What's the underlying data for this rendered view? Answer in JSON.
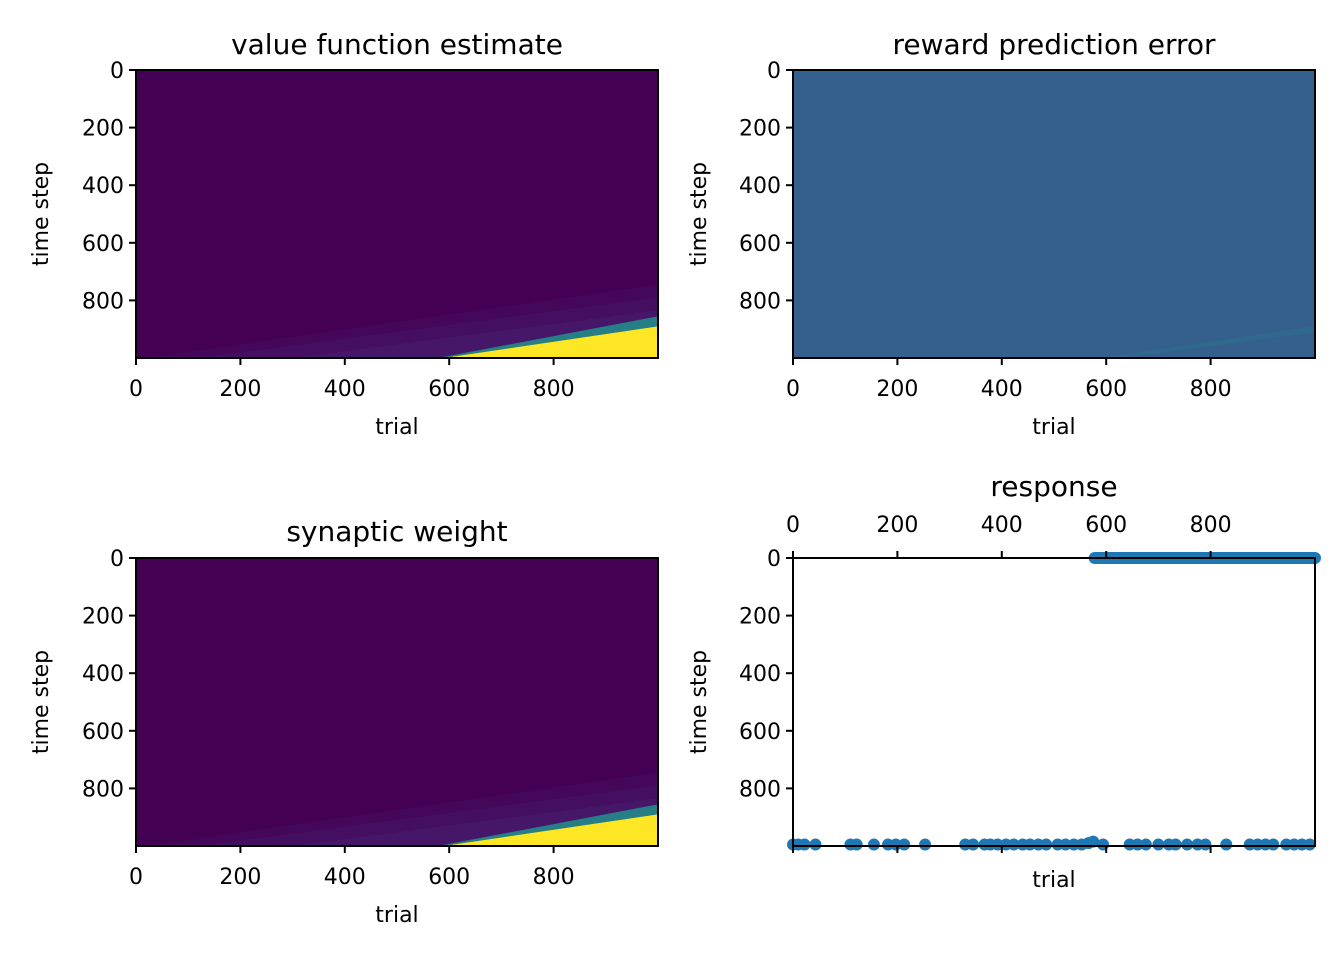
{
  "colors": {
    "viridis_low": "#440154",
    "viridis_mid_low": "#482878",
    "viridis_mid": "#21908d",
    "viridis_high": "#fde725",
    "rpe_background": "#355f8d",
    "rpe_band": "#2f6b8e",
    "marker": "#1f77b4"
  },
  "chart_data": [
    {
      "type": "heatmap",
      "title": "value function estimate",
      "xlabel": "trial",
      "ylabel": "time step",
      "xlim": [
        0,
        1000
      ],
      "ylim": [
        1000,
        0
      ],
      "xticks": [
        "0",
        "200",
        "400",
        "600",
        "800"
      ],
      "yticks": [
        "0",
        "200",
        "400",
        "600",
        "800"
      ],
      "colormap": "viridis",
      "values_description": {
        "background": "low",
        "high_region": {
          "trial_start": 590,
          "time_at_trial_1000": 890,
          "color": "high"
        },
        "faint_streaks": [
          {
            "trial_start": 20,
            "time_at_trial_1000": 745
          },
          {
            "trial_start": 120,
            "time_at_trial_1000": 790
          },
          {
            "trial_start": 300,
            "time_at_trial_1000": 835
          }
        ]
      }
    },
    {
      "type": "heatmap",
      "title": "reward prediction error",
      "xlabel": "trial",
      "ylabel": "time step",
      "xlim": [
        0,
        1000
      ],
      "ylim": [
        1000,
        0
      ],
      "xticks": [
        "0",
        "200",
        "400",
        "600",
        "800"
      ],
      "yticks": [
        "0",
        "200",
        "400",
        "600",
        "800"
      ],
      "colormap": "viridis",
      "values_description": {
        "background": "near zero",
        "faint_band": {
          "trial_start": 590,
          "time_at_trial_1000": 890
        }
      }
    },
    {
      "type": "heatmap",
      "title": "synaptic weight",
      "xlabel": "trial",
      "ylabel": "time step",
      "xlim": [
        0,
        1000
      ],
      "ylim": [
        1000,
        0
      ],
      "xticks": [
        "0",
        "200",
        "400",
        "600",
        "800"
      ],
      "yticks": [
        "0",
        "200",
        "400",
        "600",
        "800"
      ],
      "colormap": "viridis",
      "values_description": {
        "background": "low",
        "high_region": {
          "trial_start": 590,
          "time_at_trial_1000": 890,
          "color": "high"
        },
        "faint_streaks": [
          {
            "trial_start": 20,
            "time_at_trial_1000": 745
          },
          {
            "trial_start": 120,
            "time_at_trial_1000": 790
          },
          {
            "trial_start": 300,
            "time_at_trial_1000": 835
          }
        ]
      }
    },
    {
      "type": "scatter",
      "title": "response",
      "xlabel": "trial",
      "ylabel": "time step",
      "xlim": [
        0,
        1000
      ],
      "ylim": [
        1000,
        0
      ],
      "xticks_top": [
        "0",
        "200",
        "400",
        "600",
        "800"
      ],
      "yticks": [
        "0",
        "200",
        "400",
        "600",
        "800"
      ],
      "series": [
        {
          "points": [
            {
              "x": 0,
              "y": 995
            },
            {
              "x": 10,
              "y": 995
            },
            {
              "x": 22,
              "y": 995
            },
            {
              "x": 43,
              "y": 995
            },
            {
              "x": 110,
              "y": 995
            },
            {
              "x": 122,
              "y": 995
            },
            {
              "x": 155,
              "y": 995
            },
            {
              "x": 182,
              "y": 995
            },
            {
              "x": 197,
              "y": 995
            },
            {
              "x": 213,
              "y": 995
            },
            {
              "x": 253,
              "y": 995
            },
            {
              "x": 330,
              "y": 995
            },
            {
              "x": 345,
              "y": 995
            },
            {
              "x": 367,
              "y": 995
            },
            {
              "x": 378,
              "y": 995
            },
            {
              "x": 392,
              "y": 995
            },
            {
              "x": 408,
              "y": 995
            },
            {
              "x": 423,
              "y": 995
            },
            {
              "x": 440,
              "y": 995
            },
            {
              "x": 454,
              "y": 995
            },
            {
              "x": 470,
              "y": 995
            },
            {
              "x": 485,
              "y": 995
            },
            {
              "x": 507,
              "y": 995
            },
            {
              "x": 522,
              "y": 995
            },
            {
              "x": 538,
              "y": 995
            },
            {
              "x": 553,
              "y": 995
            },
            {
              "x": 566,
              "y": 990
            },
            {
              "x": 575,
              "y": 985
            },
            {
              "x": 594,
              "y": 995
            },
            {
              "x": 645,
              "y": 995
            },
            {
              "x": 660,
              "y": 995
            },
            {
              "x": 676,
              "y": 995
            },
            {
              "x": 700,
              "y": 995
            },
            {
              "x": 720,
              "y": 995
            },
            {
              "x": 733,
              "y": 995
            },
            {
              "x": 755,
              "y": 995
            },
            {
              "x": 775,
              "y": 995
            },
            {
              "x": 790,
              "y": 995
            },
            {
              "x": 830,
              "y": 995
            },
            {
              "x": 875,
              "y": 995
            },
            {
              "x": 890,
              "y": 995
            },
            {
              "x": 905,
              "y": 995
            },
            {
              "x": 920,
              "y": 995
            },
            {
              "x": 945,
              "y": 995
            },
            {
              "x": 960,
              "y": 995
            },
            {
              "x": 975,
              "y": 995
            },
            {
              "x": 990,
              "y": 995
            }
          ],
          "dense_run": {
            "x_start": 578,
            "x_end": 1000,
            "y": 0
          }
        }
      ]
    }
  ]
}
